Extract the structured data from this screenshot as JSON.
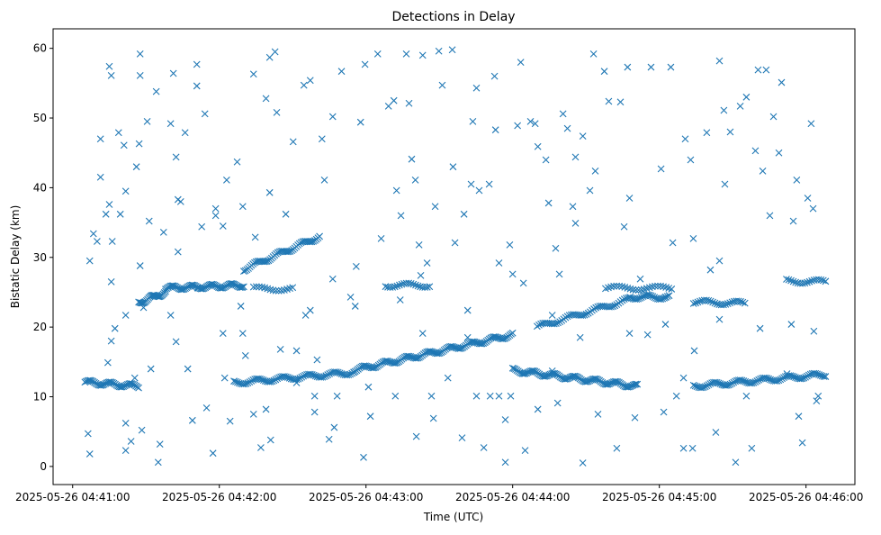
{
  "chart_data": {
    "type": "scatter",
    "title": "Detections in Delay",
    "xlabel": "Time (UTC)",
    "ylabel": "Bistatic Delay (km)",
    "x_units": "seconds after 2025-05-26 04:41:00",
    "xlim": [
      -8,
      320
    ],
    "ylim": [
      -2.6,
      62.8
    ],
    "grid": false,
    "marker": "x",
    "color": "#1f77b4",
    "x_ticks": [
      {
        "value": 0,
        "label": "2025-05-26 04:41:00"
      },
      {
        "value": 60,
        "label": "2025-05-26 04:42:00"
      },
      {
        "value": 120,
        "label": "2025-05-26 04:43:00"
      },
      {
        "value": 180,
        "label": "2025-05-26 04:44:00"
      },
      {
        "value": 240,
        "label": "2025-05-26 04:45:00"
      },
      {
        "value": 300,
        "label": "2025-05-26 04:46:00"
      }
    ],
    "y_ticks": [
      {
        "value": 0,
        "label": "0"
      },
      {
        "value": 10,
        "label": "10"
      },
      {
        "value": 20,
        "label": "20"
      },
      {
        "value": 30,
        "label": "30"
      },
      {
        "value": 40,
        "label": "40"
      },
      {
        "value": 50,
        "label": "50"
      },
      {
        "value": 60,
        "label": "60"
      }
    ],
    "tracks": [
      {
        "x0": 5,
        "y0": 12.1,
        "x1": 27,
        "y1": 11.5,
        "n": 40
      },
      {
        "x0": 27,
        "y0": 23.5,
        "x1": 38,
        "y1": 25,
        "n": 25
      },
      {
        "x0": 38,
        "y0": 25.6,
        "x1": 70,
        "y1": 26,
        "n": 60
      },
      {
        "x0": 66,
        "y0": 12,
        "x1": 115,
        "y1": 13.5,
        "n": 70
      },
      {
        "x0": 115,
        "y0": 13.8,
        "x1": 180,
        "y1": 18.9,
        "n": 110
      },
      {
        "x0": 180,
        "y0": 13.8,
        "x1": 231,
        "y1": 11.5,
        "n": 90
      },
      {
        "x0": 70,
        "y0": 28.3,
        "x1": 101,
        "y1": 33,
        "n": 50
      },
      {
        "x0": 74,
        "y0": 25.5,
        "x1": 90,
        "y1": 25.5,
        "n": 15
      },
      {
        "x0": 128,
        "y0": 26,
        "x1": 146,
        "y1": 26,
        "n": 20
      },
      {
        "x0": 190,
        "y0": 20,
        "x1": 228,
        "y1": 24,
        "n": 50
      },
      {
        "x0": 228,
        "y0": 24.3,
        "x1": 244,
        "y1": 24.3,
        "n": 25
      },
      {
        "x0": 218,
        "y0": 25.6,
        "x1": 245,
        "y1": 25.6,
        "n": 25
      },
      {
        "x0": 254,
        "y0": 11.5,
        "x1": 308,
        "y1": 13.2,
        "n": 80
      },
      {
        "x0": 254,
        "y0": 23.6,
        "x1": 275,
        "y1": 23.4,
        "n": 25
      },
      {
        "x0": 292,
        "y0": 26.6,
        "x1": 308,
        "y1": 26.5,
        "n": 18
      }
    ],
    "points": [
      [
        6.3,
        4.7
      ],
      [
        7,
        1.8
      ],
      [
        8.5,
        33.4
      ],
      [
        7,
        29.5
      ],
      [
        10,
        32.3
      ],
      [
        11.4,
        47
      ],
      [
        11.4,
        41.5
      ],
      [
        15,
        57.4
      ],
      [
        15.8,
        56.1
      ],
      [
        15,
        37.6
      ],
      [
        13.6,
        36.2
      ],
      [
        16.2,
        32.3
      ],
      [
        15.8,
        26.5
      ],
      [
        14.4,
        14.9
      ],
      [
        15.8,
        18
      ],
      [
        17.3,
        19.8
      ],
      [
        18.8,
        47.9
      ],
      [
        19.5,
        36.2
      ],
      [
        21,
        46.1
      ],
      [
        21.7,
        39.5
      ],
      [
        21.7,
        6.2
      ],
      [
        21.7,
        2.3
      ],
      [
        23.9,
        3.6
      ],
      [
        25.4,
        12.7
      ],
      [
        26.1,
        43
      ],
      [
        27.6,
        59.2
      ],
      [
        27.6,
        56.1
      ],
      [
        27.2,
        46.3
      ],
      [
        27.6,
        28.8
      ],
      [
        29,
        22.8
      ],
      [
        28.3,
        5.2
      ],
      [
        30.5,
        49.5
      ],
      [
        31.3,
        35.2
      ],
      [
        32,
        14
      ],
      [
        34.2,
        53.8
      ],
      [
        35,
        0.6
      ],
      [
        35.7,
        3.2
      ],
      [
        37.2,
        33.6
      ],
      [
        40.1,
        49.2
      ],
      [
        41.2,
        56.4
      ],
      [
        42.3,
        44.4
      ],
      [
        43.1,
        38.3
      ],
      [
        44.2,
        38
      ],
      [
        46,
        47.9
      ],
      [
        47.1,
        14
      ],
      [
        49,
        6.6
      ],
      [
        50.8,
        54.6
      ],
      [
        50.8,
        57.7
      ],
      [
        52.8,
        34.4
      ],
      [
        54.1,
        50.6
      ],
      [
        54.8,
        8.4
      ],
      [
        57.4,
        1.9
      ],
      [
        58.5,
        36
      ],
      [
        61.5,
        34.5
      ],
      [
        63,
        41.1
      ],
      [
        61.5,
        19.1
      ],
      [
        64.4,
        6.5
      ],
      [
        67.3,
        43.7
      ],
      [
        69.6,
        37.3
      ],
      [
        68.8,
        23
      ],
      [
        70.7,
        15.9
      ],
      [
        74,
        56.3
      ],
      [
        74.7,
        32.9
      ],
      [
        77,
        2.7
      ],
      [
        79.1,
        52.8
      ],
      [
        80.6,
        58.7
      ],
      [
        82.8,
        59.5
      ],
      [
        81,
        3.8
      ],
      [
        83.5,
        50.8
      ],
      [
        85,
        16.8
      ],
      [
        87.2,
        36.2
      ],
      [
        90.2,
        46.6
      ],
      [
        91.6,
        12
      ],
      [
        94.6,
        54.7
      ],
      [
        97.2,
        55.4
      ],
      [
        97.2,
        22.4
      ],
      [
        99,
        7.8
      ],
      [
        100,
        15.3
      ],
      [
        102,
        47
      ],
      [
        103,
        41.1
      ],
      [
        104.9,
        3.9
      ],
      [
        106.4,
        50.2
      ],
      [
        107,
        5.6
      ],
      [
        108.2,
        10.1
      ],
      [
        110,
        56.7
      ],
      [
        113.7,
        24.3
      ],
      [
        116,
        28.7
      ],
      [
        117.8,
        49.4
      ],
      [
        119,
        1.3
      ],
      [
        119.6,
        57.7
      ],
      [
        121,
        11.4
      ],
      [
        121.8,
        7.2
      ],
      [
        124.8,
        59.2
      ],
      [
        126.2,
        32.7
      ],
      [
        129.2,
        51.7
      ],
      [
        131.4,
        52.5
      ],
      [
        132.5,
        39.6
      ],
      [
        134.3,
        36
      ],
      [
        136.5,
        59.2
      ],
      [
        137.6,
        52.1
      ],
      [
        138.7,
        44.1
      ],
      [
        140.2,
        41.1
      ],
      [
        141.7,
        31.8
      ],
      [
        142.4,
        27.4
      ],
      [
        140.6,
        4.3
      ],
      [
        143.2,
        59
      ],
      [
        145,
        29.2
      ],
      [
        147.6,
        6.9
      ],
      [
        148.3,
        37.3
      ],
      [
        149.8,
        59.6
      ],
      [
        151.2,
        54.7
      ],
      [
        153.5,
        12.7
      ],
      [
        155.3,
        59.8
      ],
      [
        156.4,
        32.1
      ],
      [
        155.6,
        43
      ],
      [
        159.3,
        4.1
      ],
      [
        160.1,
        36.2
      ],
      [
        163,
        40.5
      ],
      [
        163.7,
        49.5
      ],
      [
        165.2,
        54.3
      ],
      [
        166.3,
        39.6
      ],
      [
        168.2,
        2.7
      ],
      [
        170.4,
        40.5
      ],
      [
        172.6,
        56
      ],
      [
        173,
        48.3
      ],
      [
        174.4,
        29.2
      ],
      [
        177,
        6.7
      ],
      [
        178.8,
        31.8
      ],
      [
        177,
        0.6
      ],
      [
        182,
        48.9
      ],
      [
        183.3,
        58
      ],
      [
        184.4,
        26.3
      ],
      [
        185.1,
        2.3
      ],
      [
        187.3,
        49.5
      ],
      [
        189.2,
        49.2
      ],
      [
        190.3,
        45.9
      ],
      [
        193.6,
        44
      ],
      [
        194.7,
        37.8
      ],
      [
        196.2,
        13.7
      ],
      [
        197.6,
        31.3
      ],
      [
        199.1,
        27.6
      ],
      [
        200.6,
        50.6
      ],
      [
        202.4,
        48.5
      ],
      [
        204.6,
        37.3
      ],
      [
        205.7,
        44.4
      ],
      [
        208.7,
        0.5
      ],
      [
        208.7,
        47.4
      ],
      [
        211.6,
        39.6
      ],
      [
        213.1,
        59.2
      ],
      [
        213.8,
        42.4
      ],
      [
        214.9,
        7.5
      ],
      [
        217.5,
        56.7
      ],
      [
        219.3,
        52.4
      ],
      [
        222.6,
        2.6
      ],
      [
        224.1,
        52.3
      ],
      [
        225.6,
        34.4
      ],
      [
        227,
        57.3
      ],
      [
        230,
        7
      ],
      [
        232.2,
        26.9
      ],
      [
        235.2,
        18.9
      ],
      [
        236.6,
        57.3
      ],
      [
        240.7,
        42.7
      ],
      [
        241.8,
        7.8
      ],
      [
        244.7,
        57.3
      ],
      [
        245.5,
        32.1
      ],
      [
        247,
        10.1
      ],
      [
        249.9,
        2.6
      ],
      [
        250.6,
        47
      ],
      [
        252.8,
        44
      ],
      [
        253.6,
        2.6
      ],
      [
        253.9,
        32.7
      ],
      [
        254.3,
        16.6
      ],
      [
        259.4,
        47.9
      ],
      [
        260.9,
        28.2
      ],
      [
        263.1,
        4.9
      ],
      [
        264.6,
        58.2
      ],
      [
        266.4,
        51.1
      ],
      [
        266.8,
        40.5
      ],
      [
        269,
        48
      ],
      [
        271.2,
        0.6
      ],
      [
        273.1,
        51.7
      ],
      [
        275.6,
        53
      ],
      [
        277.8,
        2.6
      ],
      [
        279.3,
        45.3
      ],
      [
        280.4,
        56.9
      ],
      [
        282.3,
        42.4
      ],
      [
        283.7,
        56.9
      ],
      [
        285.2,
        36
      ],
      [
        286.7,
        50.2
      ],
      [
        288.9,
        45
      ],
      [
        290,
        55.1
      ],
      [
        292.2,
        13.3
      ],
      [
        294.8,
        35.2
      ],
      [
        296.2,
        41.1
      ],
      [
        297,
        7.2
      ],
      [
        298.5,
        3.4
      ],
      [
        300.7,
        38.5
      ],
      [
        302.1,
        49.2
      ],
      [
        302.9,
        37
      ],
      [
        303.2,
        19.4
      ],
      [
        304.3,
        9.4
      ],
      [
        305,
        10.1
      ],
      [
        21.7,
        21.7
      ],
      [
        40.1,
        21.7
      ],
      [
        42.3,
        17.9
      ],
      [
        69.6,
        19.1
      ],
      [
        95.3,
        21.7
      ],
      [
        115.6,
        23
      ],
      [
        134,
        23.9
      ],
      [
        143.2,
        19.1
      ],
      [
        161.6,
        18.5
      ],
      [
        179.2,
        10.1
      ],
      [
        190.3,
        8.2
      ],
      [
        196.2,
        21.7
      ],
      [
        207.6,
        18.5
      ],
      [
        227.8,
        19.1
      ],
      [
        242.5,
        20.4
      ],
      [
        264.6,
        21.1
      ],
      [
        281.2,
        19.8
      ],
      [
        294,
        20.4
      ],
      [
        99,
        10.1
      ],
      [
        132,
        10.1
      ],
      [
        146.8,
        10.1
      ],
      [
        165.2,
        10.1
      ],
      [
        170.8,
        10.1
      ],
      [
        174.4,
        10.1
      ],
      [
        198.4,
        9.1
      ],
      [
        275.6,
        10.1
      ],
      [
        74,
        7.5
      ],
      [
        79.1,
        8.2
      ],
      [
        62.2,
        12.7
      ],
      [
        51.2,
        25.6
      ],
      [
        43.1,
        30.8
      ],
      [
        58.5,
        37
      ],
      [
        80.6,
        39.3
      ],
      [
        91.6,
        16.6
      ],
      [
        106.4,
        26.9
      ],
      [
        161.6,
        22.4
      ],
      [
        180,
        27.6
      ],
      [
        205.7,
        34.9
      ],
      [
        227.8,
        38.5
      ],
      [
        242.5,
        24.3
      ],
      [
        264.6,
        29.5
      ],
      [
        249.9,
        12.7
      ]
    ]
  }
}
